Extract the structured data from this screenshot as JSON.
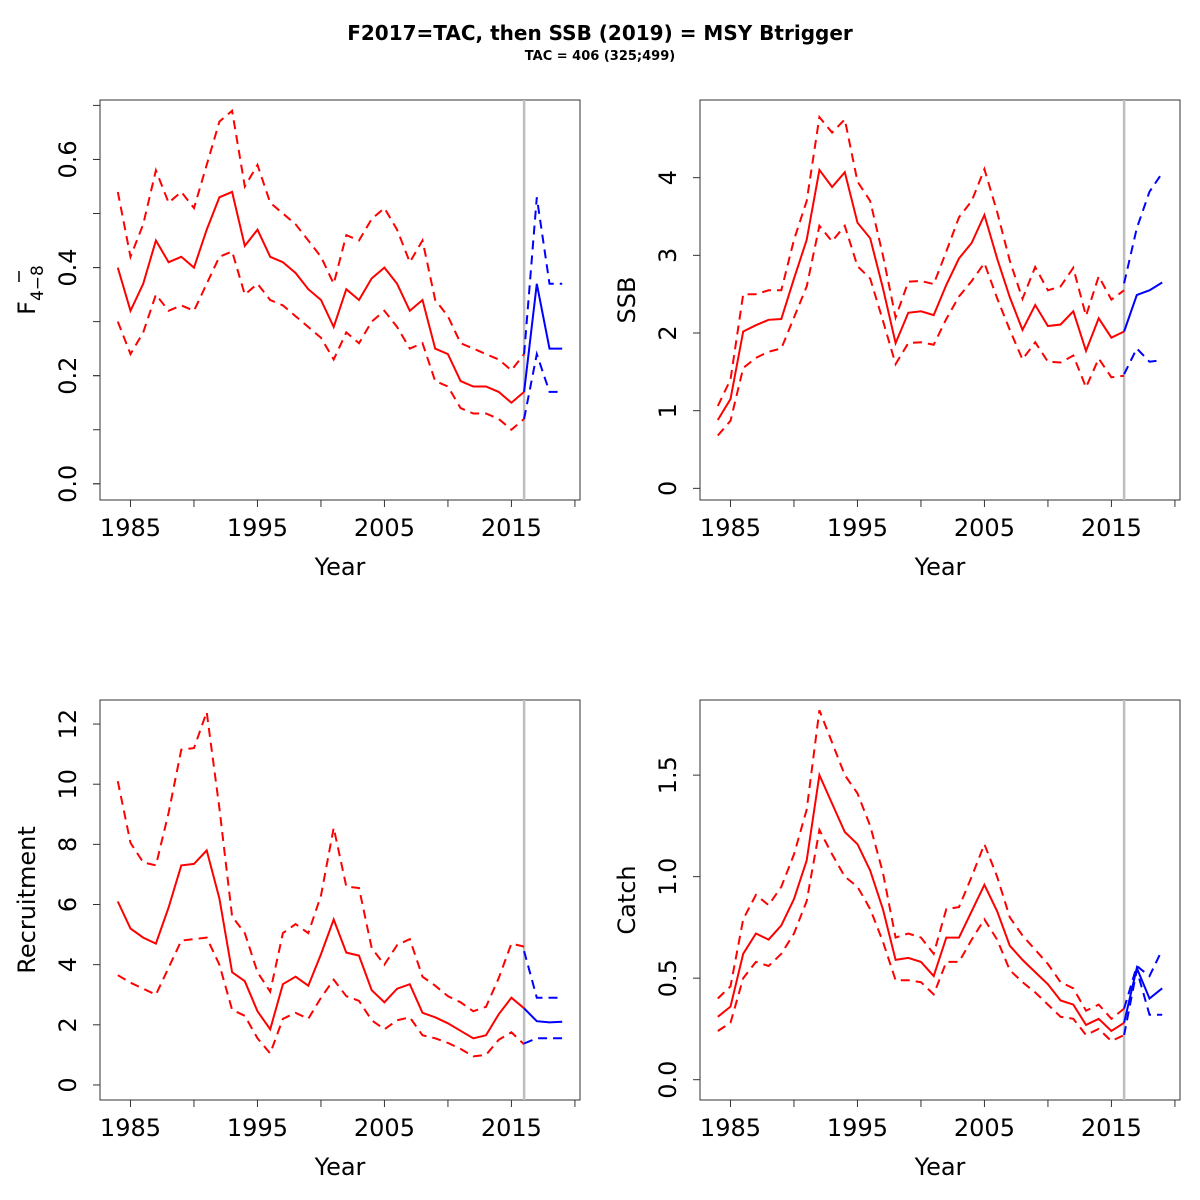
{
  "figure": {
    "title": "F2017=TAC, then SSB (2019) = MSY Btrigger",
    "subtitle": "TAC = 406 (325;499)"
  },
  "colors": {
    "historical": "#ff0000",
    "forecast": "#0000ff",
    "vertical_line": "#bebebe"
  },
  "chart_data": [
    {
      "type": "line",
      "ylabel_main": "F",
      "ylabel_sub": "4−8",
      "xlabel": "Year",
      "xlim": [
        1982.6,
        2020.4
      ],
      "ylim": [
        -0.03,
        0.71
      ],
      "x_ticks": [
        1985,
        1995,
        2005,
        2015
      ],
      "x_minor_ticks": [
        1985,
        1990,
        1995,
        2000,
        2005,
        2010,
        2015,
        2020
      ],
      "y_ticks": [
        0.0,
        0.2,
        0.4,
        0.6
      ],
      "y_tick_labels": [
        "0.0",
        "0.2",
        "0.4",
        "0.6"
      ],
      "y_minor_ticks": [
        0.0,
        0.1,
        0.2,
        0.3,
        0.4,
        0.5,
        0.6,
        0.7
      ],
      "vline": 2016,
      "hist_x": [
        1984,
        1985,
        1986,
        1987,
        1988,
        1989,
        1990,
        1991,
        1992,
        1993,
        1994,
        1995,
        1996,
        1997,
        1998,
        1999,
        2000,
        2001,
        2002,
        2003,
        2004,
        2005,
        2006,
        2007,
        2008,
        2009,
        2010,
        2011,
        2012,
        2013,
        2014,
        2015,
        2016
      ],
      "hist_mid": [
        0.4,
        0.32,
        0.37,
        0.45,
        0.41,
        0.42,
        0.4,
        0.47,
        0.53,
        0.54,
        0.44,
        0.47,
        0.42,
        0.41,
        0.39,
        0.36,
        0.34,
        0.29,
        0.36,
        0.34,
        0.38,
        0.4,
        0.37,
        0.32,
        0.34,
        0.25,
        0.24,
        0.19,
        0.18,
        0.18,
        0.17,
        0.15,
        0.17
      ],
      "hist_lo": [
        0.3,
        0.24,
        0.28,
        0.35,
        0.32,
        0.33,
        0.32,
        0.37,
        0.42,
        0.43,
        0.35,
        0.37,
        0.34,
        0.33,
        0.31,
        0.29,
        0.27,
        0.23,
        0.28,
        0.26,
        0.3,
        0.32,
        0.29,
        0.25,
        0.26,
        0.19,
        0.18,
        0.14,
        0.13,
        0.13,
        0.12,
        0.1,
        0.12
      ],
      "hist_hi": [
        0.54,
        0.42,
        0.48,
        0.58,
        0.52,
        0.54,
        0.51,
        0.59,
        0.67,
        0.69,
        0.55,
        0.59,
        0.52,
        0.5,
        0.48,
        0.45,
        0.42,
        0.37,
        0.46,
        0.45,
        0.49,
        0.51,
        0.47,
        0.41,
        0.45,
        0.34,
        0.31,
        0.26,
        0.25,
        0.24,
        0.23,
        0.21,
        0.24
      ],
      "fc_x": [
        2016,
        2017,
        2018,
        2019
      ],
      "fc_mid": [
        0.17,
        0.37,
        0.25,
        0.25
      ],
      "fc_lo": [
        0.12,
        0.24,
        0.17,
        0.17
      ],
      "fc_hi": [
        0.24,
        0.53,
        0.37,
        0.37
      ]
    },
    {
      "type": "line",
      "ylabel": "SSB",
      "xlabel": "Year",
      "xlim": [
        1982.6,
        2020.4
      ],
      "ylim": [
        -0.15,
        5.0
      ],
      "x_ticks": [
        1985,
        1995,
        2005,
        2015
      ],
      "x_minor_ticks": [
        1985,
        1990,
        1995,
        2000,
        2005,
        2010,
        2015,
        2020
      ],
      "y_ticks": [
        0,
        1,
        2,
        3,
        4
      ],
      "y_tick_labels": [
        "0",
        "1",
        "2",
        "3",
        "4"
      ],
      "y_minor_ticks": [],
      "vline": 2016,
      "hist_x": [
        1984,
        1985,
        1986,
        1987,
        1988,
        1989,
        1990,
        1991,
        1992,
        1993,
        1994,
        1995,
        1996,
        1997,
        1998,
        1999,
        2000,
        2001,
        2002,
        2003,
        2004,
        2005,
        2006,
        2007,
        2008,
        2009,
        2010,
        2011,
        2012,
        2013,
        2014,
        2015,
        2016
      ],
      "hist_mid": [
        0.88,
        1.15,
        2.02,
        2.1,
        2.17,
        2.18,
        2.7,
        3.2,
        4.1,
        3.88,
        4.07,
        3.42,
        3.22,
        2.58,
        1.87,
        2.26,
        2.28,
        2.23,
        2.62,
        2.96,
        3.16,
        3.52,
        2.96,
        2.46,
        2.04,
        2.36,
        2.09,
        2.11,
        2.28,
        1.77,
        2.19,
        1.94,
        2.02
      ],
      "hist_lo": [
        0.68,
        0.87,
        1.55,
        1.68,
        1.76,
        1.8,
        2.2,
        2.6,
        3.38,
        3.18,
        3.38,
        2.86,
        2.7,
        2.16,
        1.6,
        1.87,
        1.88,
        1.85,
        2.18,
        2.47,
        2.67,
        2.9,
        2.45,
        2.04,
        1.66,
        1.88,
        1.63,
        1.62,
        1.71,
        1.3,
        1.67,
        1.43,
        1.45
      ],
      "hist_hi": [
        1.06,
        1.4,
        2.5,
        2.5,
        2.55,
        2.55,
        3.2,
        3.7,
        4.78,
        4.58,
        4.75,
        3.95,
        3.7,
        3.0,
        2.2,
        2.66,
        2.67,
        2.63,
        3.05,
        3.49,
        3.7,
        4.11,
        3.56,
        2.93,
        2.44,
        2.85,
        2.55,
        2.6,
        2.84,
        2.22,
        2.73,
        2.43,
        2.55
      ],
      "fc_x": [
        2016,
        2017,
        2018,
        2019
      ],
      "fc_mid": [
        2.02,
        2.49,
        2.55,
        2.65
      ],
      "fc_lo": [
        1.47,
        1.8,
        1.63,
        1.65
      ],
      "fc_hi": [
        2.64,
        3.35,
        3.82,
        4.06
      ]
    },
    {
      "type": "line",
      "ylabel": "Recruitment",
      "xlabel": "Year",
      "xlim": [
        1982.6,
        2020.4
      ],
      "ylim": [
        -0.5,
        12.8
      ],
      "x_ticks": [
        1985,
        1995,
        2005,
        2015
      ],
      "x_minor_ticks": [
        1985,
        1990,
        1995,
        2000,
        2005,
        2010,
        2015,
        2020
      ],
      "y_ticks": [
        0,
        2,
        4,
        6,
        8,
        10,
        12
      ],
      "y_tick_labels": [
        "0",
        "2",
        "4",
        "6",
        "8",
        "10",
        "12"
      ],
      "y_minor_ticks": [],
      "vline": 2016,
      "hist_x": [
        1984,
        1985,
        1986,
        1987,
        1988,
        1989,
        1990,
        1991,
        1992,
        1993,
        1994,
        1995,
        1996,
        1997,
        1998,
        1999,
        2000,
        2001,
        2002,
        2003,
        2004,
        2005,
        2006,
        2007,
        2008,
        2009,
        2010,
        2011,
        2012,
        2013,
        2014,
        2015,
        2016
      ],
      "hist_mid": [
        6.1,
        5.2,
        4.9,
        4.7,
        5.9,
        7.3,
        7.35,
        7.8,
        6.2,
        3.75,
        3.45,
        2.45,
        1.85,
        3.35,
        3.6,
        3.3,
        4.35,
        5.5,
        4.4,
        4.3,
        3.15,
        2.75,
        3.2,
        3.35,
        2.4,
        2.25,
        2.05,
        1.8,
        1.55,
        1.65,
        2.35,
        2.9,
        2.55
      ],
      "hist_lo": [
        3.65,
        3.4,
        3.2,
        3.0,
        3.9,
        4.8,
        4.85,
        4.9,
        4.0,
        2.5,
        2.3,
        1.55,
        1.05,
        2.2,
        2.4,
        2.2,
        2.9,
        3.5,
        2.95,
        2.8,
        2.15,
        1.85,
        2.15,
        2.25,
        1.65,
        1.55,
        1.4,
        1.2,
        0.95,
        1.0,
        1.5,
        1.75,
        1.35
      ],
      "hist_hi": [
        10.1,
        8.05,
        7.4,
        7.3,
        9.05,
        11.15,
        11.2,
        12.4,
        9.2,
        5.6,
        5.05,
        3.75,
        3.1,
        5.05,
        5.35,
        5.05,
        6.3,
        8.55,
        6.6,
        6.55,
        4.55,
        4.0,
        4.65,
        4.85,
        3.6,
        3.3,
        2.95,
        2.75,
        2.45,
        2.6,
        3.55,
        4.7,
        4.6
      ],
      "fc_x": [
        2016,
        2017,
        2018,
        2019
      ],
      "fc_mid": [
        2.55,
        2.12,
        2.08,
        2.1
      ],
      "fc_lo": [
        1.38,
        1.55,
        1.55,
        1.55
      ],
      "fc_hi": [
        4.45,
        2.9,
        2.9,
        2.9
      ]
    },
    {
      "type": "line",
      "ylabel": "Catch",
      "xlabel": "Year",
      "xlim": [
        1982.6,
        2020.4
      ],
      "ylim": [
        -0.1,
        1.87
      ],
      "x_ticks": [
        1985,
        1995,
        2005,
        2015
      ],
      "x_minor_ticks": [
        1985,
        1990,
        1995,
        2000,
        2005,
        2010,
        2015,
        2020
      ],
      "y_ticks": [
        0.0,
        0.5,
        1.0,
        1.5
      ],
      "y_tick_labels": [
        "0.0",
        "0.5",
        "1.0",
        "1.5"
      ],
      "y_minor_ticks": [],
      "vline": 2016,
      "hist_x": [
        1984,
        1985,
        1986,
        1987,
        1988,
        1989,
        1990,
        1991,
        1992,
        1993,
        1994,
        1995,
        1996,
        1997,
        1998,
        1999,
        2000,
        2001,
        2002,
        2003,
        2004,
        2005,
        2006,
        2007,
        2008,
        2009,
        2010,
        2011,
        2012,
        2013,
        2014,
        2015,
        2016
      ],
      "hist_mid": [
        0.31,
        0.36,
        0.62,
        0.72,
        0.69,
        0.76,
        0.89,
        1.08,
        1.5,
        1.36,
        1.22,
        1.16,
        1.03,
        0.84,
        0.59,
        0.6,
        0.58,
        0.51,
        0.7,
        0.7,
        0.83,
        0.96,
        0.83,
        0.66,
        0.59,
        0.53,
        0.47,
        0.39,
        0.37,
        0.27,
        0.3,
        0.24,
        0.28
      ],
      "hist_lo": [
        0.24,
        0.28,
        0.5,
        0.58,
        0.56,
        0.62,
        0.72,
        0.88,
        1.23,
        1.11,
        1.0,
        0.95,
        0.84,
        0.68,
        0.49,
        0.49,
        0.48,
        0.42,
        0.58,
        0.58,
        0.69,
        0.79,
        0.69,
        0.54,
        0.48,
        0.43,
        0.37,
        0.31,
        0.3,
        0.22,
        0.25,
        0.19,
        0.22
      ],
      "hist_hi": [
        0.4,
        0.46,
        0.79,
        0.91,
        0.86,
        0.95,
        1.11,
        1.33,
        1.82,
        1.66,
        1.5,
        1.41,
        1.25,
        1.02,
        0.7,
        0.72,
        0.7,
        0.62,
        0.84,
        0.85,
        1.0,
        1.16,
        1.0,
        0.8,
        0.71,
        0.64,
        0.57,
        0.48,
        0.45,
        0.34,
        0.37,
        0.3,
        0.35
      ],
      "fc_x": [
        2016,
        2017,
        2018,
        2019
      ],
      "fc_mid": [
        0.28,
        0.55,
        0.4,
        0.45
      ],
      "fc_lo": [
        0.22,
        0.54,
        0.32,
        0.32
      ],
      "fc_hi": [
        0.35,
        0.56,
        0.51,
        0.64
      ]
    }
  ]
}
